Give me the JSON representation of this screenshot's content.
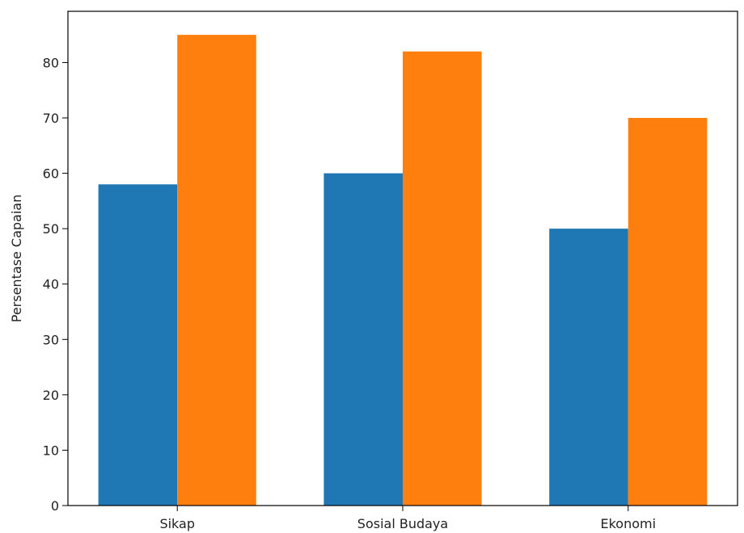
{
  "chart_data": {
    "type": "bar",
    "title": "",
    "xlabel": "",
    "ylabel": "Persentase Capaian",
    "categories": [
      "Sikap",
      "Sosial Budaya",
      "Ekonomi"
    ],
    "series": [
      {
        "values": [
          58,
          60,
          50
        ],
        "color": "#1f77b4"
      },
      {
        "values": [
          85,
          82,
          70
        ],
        "color": "#ff7f0e"
      }
    ],
    "ylim": [
      0,
      89.25
    ],
    "yticks": [
      0,
      10,
      20,
      30,
      40,
      50,
      60,
      70,
      80
    ],
    "grid": false,
    "legend": "none"
  }
}
